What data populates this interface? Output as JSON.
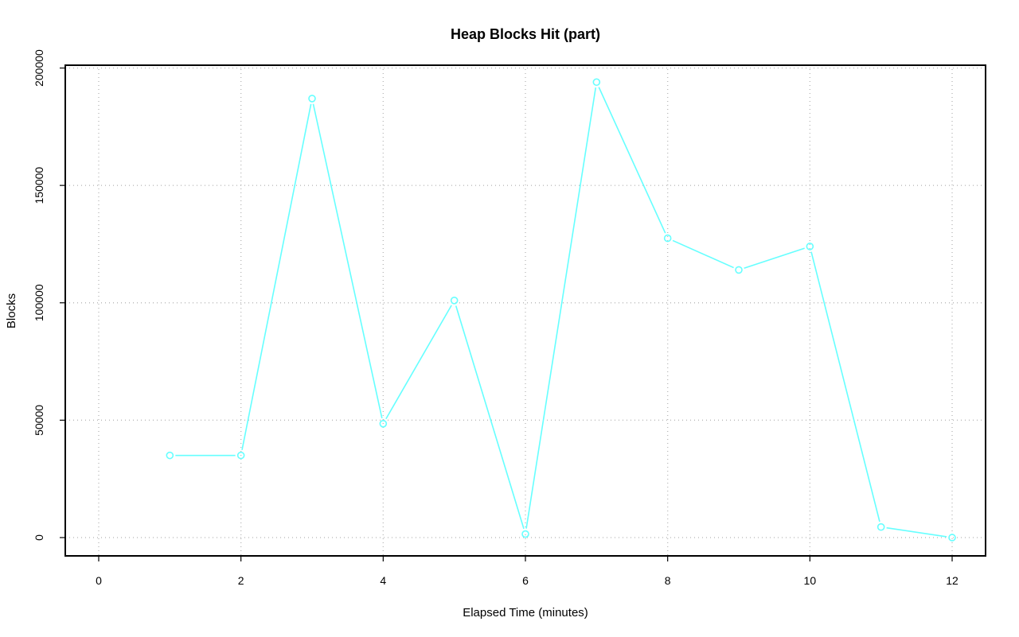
{
  "chart_data": {
    "type": "line",
    "title": "Heap Blocks Hit (part)",
    "xlabel": "Elapsed Time (minutes)",
    "ylabel": "Blocks",
    "xlim": [
      -0.47,
      12.47
    ],
    "ylim": [
      -7800,
      201200
    ],
    "x_ticks": [
      0,
      2,
      4,
      6,
      8,
      10,
      12
    ],
    "y_ticks": [
      0,
      50000,
      100000,
      150000,
      200000
    ],
    "grid": true,
    "series_color": "#66ffff",
    "series": [
      {
        "x": [
          1,
          2,
          3,
          4,
          5,
          6,
          7,
          8,
          9,
          10,
          11,
          12
        ],
        "values": [
          35000,
          35000,
          187000,
          48500,
          101000,
          1500,
          194000,
          127500,
          114000,
          124000,
          4500,
          0
        ]
      }
    ]
  }
}
